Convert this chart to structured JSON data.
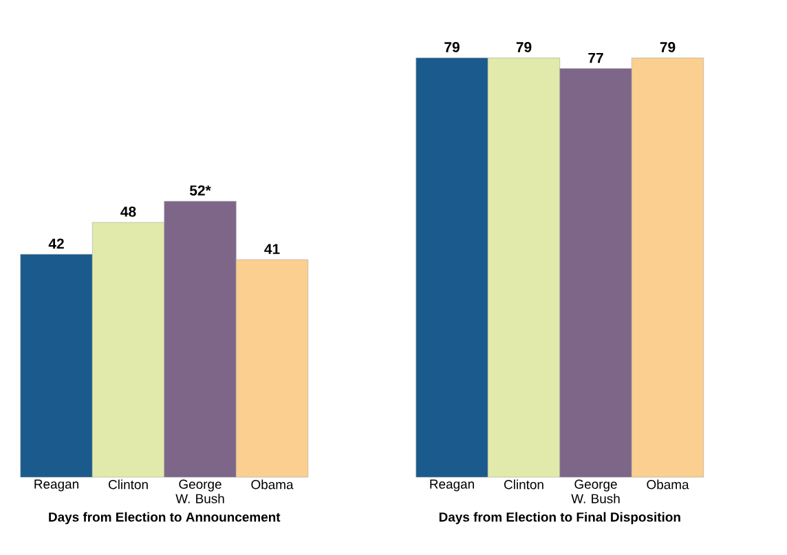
{
  "chart_data": [
    {
      "type": "bar",
      "xlabel": "Days from Election to Announcement",
      "categories": [
        "Reagan",
        "Clinton",
        "George W. Bush",
        "Obama"
      ],
      "values": [
        42,
        48,
        52,
        41
      ],
      "value_labels": [
        "42",
        "48",
        "52*",
        "41"
      ],
      "colors": [
        "#1a5a8c",
        "#e1eaaa",
        "#7e6689",
        "#fbcf8f"
      ]
    },
    {
      "type": "bar",
      "xlabel": "Days from Election to Final Disposition",
      "categories": [
        "Reagan",
        "Clinton",
        "George W. Bush",
        "Obama"
      ],
      "values": [
        79,
        79,
        77,
        79
      ],
      "value_labels": [
        "79",
        "79",
        "77",
        "79"
      ],
      "colors": [
        "#1a5a8c",
        "#e1eaaa",
        "#7e6689",
        "#fbcf8f"
      ]
    }
  ]
}
